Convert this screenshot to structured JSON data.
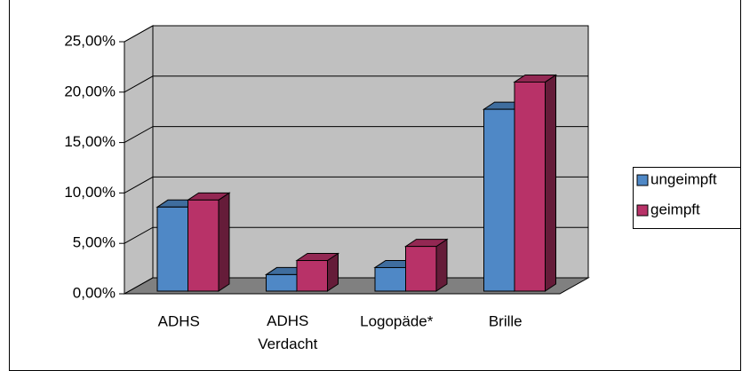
{
  "chart_data": {
    "type": "bar3d",
    "categories": [
      "ADHS",
      "ADHS Verdacht",
      "Logopäde*",
      "Brille"
    ],
    "series": [
      {
        "name": "ungeimpft",
        "color": "#4f88c6",
        "values": [
          8.6,
          1.9,
          2.6,
          18.3
        ]
      },
      {
        "name": "geimpft",
        "color": "#b83268",
        "values": [
          9.3,
          3.3,
          4.7,
          21.0
        ]
      }
    ],
    "ylim": [
      0,
      25
    ],
    "yticks": [
      {
        "value": 0,
        "label": "0,00%"
      },
      {
        "value": 5,
        "label": "5,00%"
      },
      {
        "value": 10,
        "label": "10,00%"
      },
      {
        "value": 15,
        "label": "15,00%"
      },
      {
        "value": 20,
        "label": "20,00%"
      },
      {
        "value": 25,
        "label": "25,00%"
      }
    ],
    "grid": true,
    "legend": "right"
  }
}
